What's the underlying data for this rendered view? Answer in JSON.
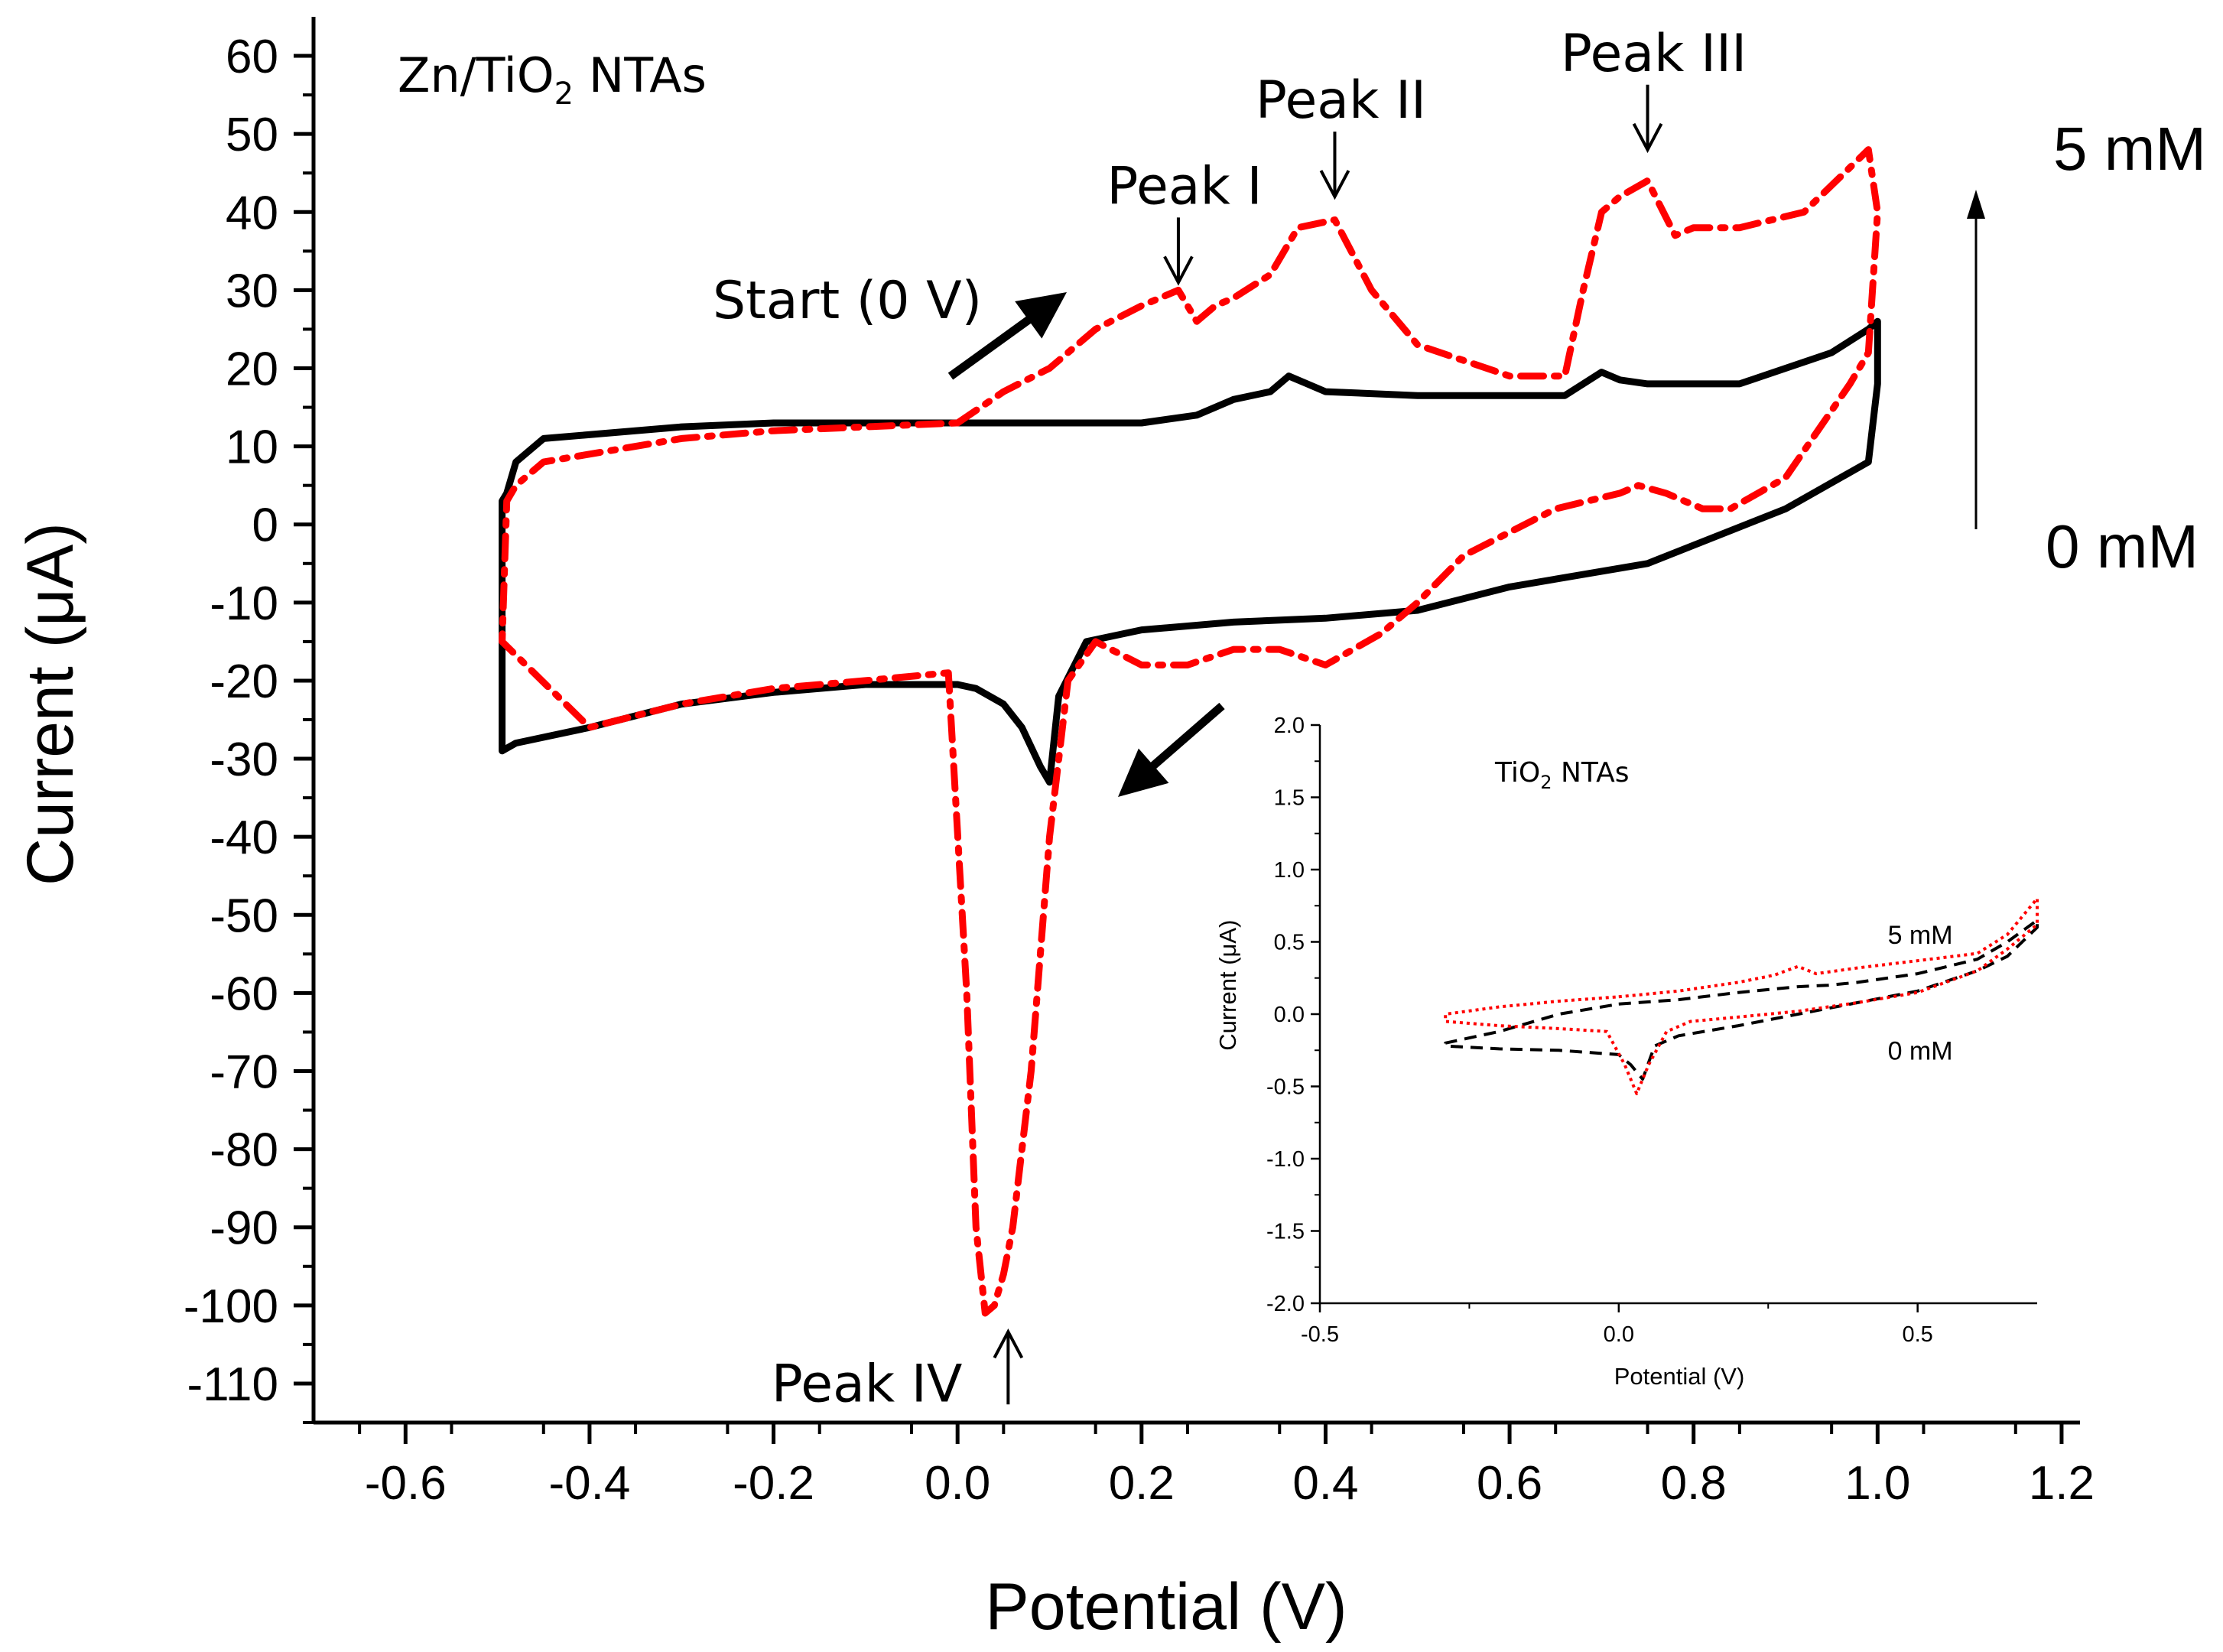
{
  "chart_data": [
    {
      "id": "main",
      "type": "line",
      "title": "",
      "sample_label": "Zn/TiO",
      "sample_label_sub": "2",
      "sample_label_suffix": " NTAs",
      "xlabel": "Potential (V)",
      "ylabel": "Current (μA)",
      "xlim": [
        -0.7,
        1.22
      ],
      "ylim": [
        -115,
        65
      ],
      "xticks": [
        -0.6,
        -0.4,
        -0.2,
        0.0,
        0.2,
        0.4,
        0.6,
        0.8,
        1.0,
        1.2
      ],
      "xtick_labels": [
        "-0.6",
        "-0.4",
        "-0.2",
        "0.0",
        "0.2",
        "0.4",
        "0.6",
        "0.8",
        "1.0",
        "1.2"
      ],
      "yticks": [
        60,
        50,
        40,
        30,
        20,
        10,
        0,
        -10,
        -20,
        -30,
        -40,
        -50,
        -60,
        -70,
        -80,
        -90,
        -100,
        -110
      ],
      "ytick_labels": [
        "60",
        "50",
        "40",
        "30",
        "20",
        "10",
        "0",
        "-10",
        "-20",
        "-30",
        "-40",
        "-50",
        "-60",
        "-70",
        "-80",
        "-90",
        "-100",
        "-110"
      ],
      "series": [
        {
          "name": "0 mM",
          "color": "#000000",
          "style": "solid",
          "x": [
            0.0,
            0.1,
            0.2,
            0.26,
            0.3,
            0.34,
            0.36,
            0.38,
            0.4,
            0.5,
            0.6,
            0.66,
            0.68,
            0.7,
            0.72,
            0.75,
            0.85,
            0.95,
            0.99,
            1.0,
            1.0,
            0.99,
            0.9,
            0.75,
            0.6,
            0.5,
            0.4,
            0.3,
            0.2,
            0.14,
            0.11,
            0.1,
            0.09,
            0.07,
            0.05,
            0.02,
            0.0,
            -0.1,
            -0.2,
            -0.3,
            -0.4,
            -0.48,
            -0.495,
            -0.495,
            -0.49,
            -0.48,
            -0.45,
            -0.3,
            -0.2,
            -0.1,
            0.0
          ],
          "y": [
            13,
            13,
            13,
            14,
            16,
            17,
            19,
            18,
            17,
            16.5,
            16.5,
            16.5,
            18,
            19.5,
            18.5,
            18,
            18,
            22,
            25,
            26,
            18,
            8,
            2,
            -5,
            -8,
            -11,
            -12,
            -12.5,
            -13.5,
            -15,
            -22,
            -33,
            -31,
            -26,
            -23,
            -21,
            -20.5,
            -20.5,
            -21.5,
            -23,
            -26,
            -28,
            -29,
            3,
            4,
            8,
            11,
            12.5,
            13,
            13,
            13
          ]
        },
        {
          "name": "5 mM",
          "color": "#ff0000",
          "style": "dashdot",
          "x": [
            0.0,
            0.05,
            0.1,
            0.15,
            0.2,
            0.24,
            0.26,
            0.28,
            0.3,
            0.34,
            0.37,
            0.41,
            0.45,
            0.5,
            0.55,
            0.6,
            0.66,
            0.68,
            0.7,
            0.72,
            0.75,
            0.78,
            0.8,
            0.85,
            0.92,
            0.99,
            1.0,
            0.99,
            0.97,
            0.9,
            0.84,
            0.81,
            0.77,
            0.74,
            0.72,
            0.65,
            0.6,
            0.55,
            0.5,
            0.46,
            0.4,
            0.35,
            0.3,
            0.25,
            0.2,
            0.15,
            0.12,
            0.1,
            0.08,
            0.06,
            0.05,
            0.04,
            0.03,
            0.02,
            0.01,
            -0.01,
            -0.1,
            -0.2,
            -0.3,
            -0.4,
            -0.495,
            -0.49,
            -0.48,
            -0.45,
            -0.3,
            -0.2,
            -0.1,
            0.0
          ],
          "y": [
            13,
            17,
            20,
            25,
            28,
            30,
            26,
            28,
            29,
            32,
            38,
            39,
            30,
            23,
            21,
            19,
            19,
            30,
            40,
            42,
            44,
            37,
            38,
            38,
            40,
            48,
            40,
            22,
            18,
            6,
            2,
            2,
            4,
            5,
            4,
            2,
            -1,
            -4,
            -10,
            -14,
            -18,
            -16,
            -16,
            -18,
            -18,
            -15,
            -20,
            -40,
            -70,
            -90,
            -96,
            -100,
            -101,
            -90,
            -60,
            -19,
            -20,
            -21,
            -23,
            -26,
            -15,
            3,
            5,
            8,
            11,
            12,
            12.5,
            13
          ]
        }
      ],
      "annotations": [
        {
          "text": "Peak I",
          "x": 0.24,
          "y": 30
        },
        {
          "text": "Peak II",
          "x": 0.41,
          "y": 41
        },
        {
          "text": "Peak III",
          "x": 0.75,
          "y": 47
        },
        {
          "text": "Peak IV",
          "x": 0.055,
          "y": -102
        },
        {
          "text": "Start (0 V)",
          "x": 0.0,
          "y": 28
        }
      ],
      "concentration_labels": {
        "top": "5 mM",
        "bottom": "0 mM"
      }
    },
    {
      "id": "inset",
      "type": "line",
      "title": "",
      "sample_label": "TiO",
      "sample_label_sub": "2",
      "sample_label_suffix": " NTAs",
      "xlabel": "Potential (V)",
      "ylabel": "Current (μA)",
      "xlim": [
        -0.5,
        0.7
      ],
      "ylim": [
        -2.0,
        2.0
      ],
      "xticks": [
        -0.5,
        0.0,
        0.5
      ],
      "xtick_labels": [
        "-0.5",
        "0.0",
        "0.5"
      ],
      "yticks": [
        2.0,
        1.5,
        1.0,
        0.5,
        0.0,
        -0.5,
        -1.0,
        -1.5,
        -2.0
      ],
      "ytick_labels": [
        "2.0",
        "1.5",
        "1.0",
        "0.5",
        "0.0",
        "-0.5",
        "-1.0",
        "-1.5",
        "-2.0"
      ],
      "series": [
        {
          "name": "0 mM",
          "color": "#000000",
          "style": "dashed",
          "x": [
            0.0,
            0.1,
            0.2,
            0.3,
            0.35,
            0.4,
            0.5,
            0.6,
            0.65,
            0.7,
            0.7,
            0.65,
            0.6,
            0.5,
            0.4,
            0.3,
            0.2,
            0.1,
            0.06,
            0.04,
            0.02,
            0.0,
            -0.1,
            -0.2,
            -0.29,
            -0.29,
            -0.2,
            -0.1,
            0.0
          ],
          "y": [
            0.07,
            0.1,
            0.15,
            0.19,
            0.2,
            0.22,
            0.28,
            0.38,
            0.5,
            0.65,
            0.6,
            0.4,
            0.3,
            0.16,
            0.08,
            0.0,
            -0.08,
            -0.15,
            -0.22,
            -0.45,
            -0.35,
            -0.28,
            -0.25,
            -0.24,
            -0.22,
            -0.2,
            -0.12,
            0.0,
            0.07
          ]
        },
        {
          "name": "5 mM",
          "color": "#ff0000",
          "style": "dotted",
          "x": [
            0.0,
            0.1,
            0.2,
            0.26,
            0.3,
            0.33,
            0.4,
            0.5,
            0.6,
            0.65,
            0.7,
            0.7,
            0.65,
            0.6,
            0.5,
            0.4,
            0.3,
            0.2,
            0.12,
            0.08,
            0.05,
            0.03,
            0.01,
            -0.02,
            -0.1,
            -0.2,
            -0.29,
            -0.29,
            -0.2,
            -0.1,
            0.0
          ],
          "y": [
            0.12,
            0.16,
            0.22,
            0.27,
            0.33,
            0.28,
            0.32,
            0.37,
            0.42,
            0.55,
            0.8,
            0.62,
            0.45,
            0.3,
            0.15,
            0.08,
            0.02,
            -0.02,
            -0.05,
            -0.12,
            -0.35,
            -0.55,
            -0.35,
            -0.12,
            -0.1,
            -0.08,
            -0.05,
            0.0,
            0.05,
            0.09,
            0.12
          ]
        }
      ],
      "series_labels": [
        {
          "text": "5 mM",
          "x": 0.45,
          "y": 0.55
        },
        {
          "text": "0 mM",
          "x": 0.45,
          "y": -0.25
        }
      ]
    }
  ]
}
